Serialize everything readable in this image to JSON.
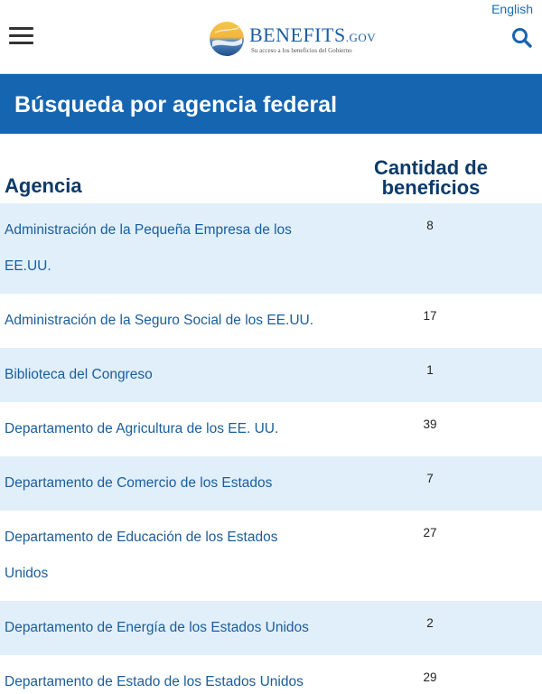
{
  "header": {
    "language_link": "English",
    "logo_word": "BENEFITS",
    "logo_suffix": ".GOV",
    "logo_tagline": "Su acceso a los beneficios del Gobierno"
  },
  "banner": {
    "title": "Búsqueda por agencia federal"
  },
  "table": {
    "headers": {
      "agency": "Agencia",
      "count": "Cantidad de beneficios"
    },
    "rows": [
      {
        "agency": "Administración de la Pequeña Empresa de los EE.UU.",
        "count": "8"
      },
      {
        "agency": "Administración de la Seguro Social de los EE.UU.",
        "count": "17"
      },
      {
        "agency": "Biblioteca del Congreso",
        "count": "1"
      },
      {
        "agency": "Departamento de Agricultura de los EE. UU.",
        "count": "39"
      },
      {
        "agency": "Departamento de Comercio de los Estados Unidos",
        "count": "7"
      },
      {
        "agency": "Departamento de Educación de los Estados Unidos",
        "count": "27"
      },
      {
        "agency": "Departamento de Energía de los Estados Unidos",
        "count": "2"
      },
      {
        "agency": "Departamento de Estado de los Estados Unidos",
        "count": "29"
      }
    ]
  },
  "icons": {
    "menu": "hamburger-menu-icon",
    "search": "search-icon",
    "logo": "benefits-gov-logo"
  },
  "colors": {
    "banner": "#1565b1",
    "link": "#1a5d9c",
    "header_text": "#0d3a68",
    "row_stripe": "#e1effa"
  }
}
